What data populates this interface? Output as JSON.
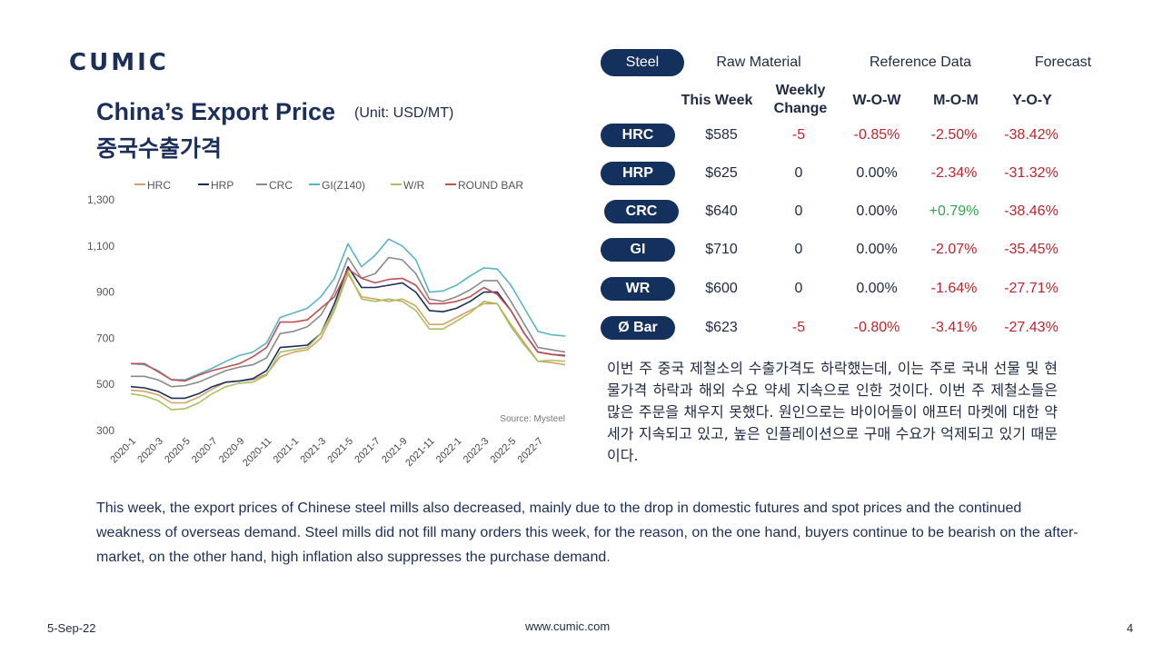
{
  "brand": {
    "logo_text": "CUMIC"
  },
  "heading": {
    "title_en": "China’s Export Price",
    "unit": "(Unit: USD/MT)",
    "title_ko": "중국수출가격"
  },
  "tabs": [
    {
      "label": "Steel",
      "active": true
    },
    {
      "label": "Raw Material",
      "active": false
    },
    {
      "label": "Reference Data",
      "active": false
    },
    {
      "label": "Forecast",
      "active": false
    }
  ],
  "table": {
    "headers": {
      "this_week": "This Week",
      "weekly_change_1": "Weekly",
      "weekly_change_2": "Change",
      "wow": "W-O-W",
      "mom": "M-O-M",
      "yoy": "Y-O-Y"
    },
    "rows": [
      {
        "product": "HRC",
        "this_week": "$585",
        "change": "-5",
        "wow": "-0.85%",
        "mom": "-2.50%",
        "yoy": "-38.42%"
      },
      {
        "product": "HRP",
        "this_week": "$625",
        "change": "0",
        "wow": "0.00%",
        "mom": "-2.34%",
        "yoy": "-31.32%"
      },
      {
        "product": "CRC",
        "this_week": "$640",
        "change": "0",
        "wow": "0.00%",
        "mom": "+0.79%",
        "yoy": "-38.46%"
      },
      {
        "product": "GI",
        "this_week": "$710",
        "change": "0",
        "wow": "0.00%",
        "mom": "-2.07%",
        "yoy": "-35.45%"
      },
      {
        "product": "WR",
        "this_week": "$600",
        "change": "0",
        "wow": "0.00%",
        "mom": "-1.64%",
        "yoy": "-27.71%"
      },
      {
        "product": "Ø Bar",
        "this_week": "$623",
        "change": "-5",
        "wow": "-0.80%",
        "mom": "-3.41%",
        "yoy": "-27.43%"
      }
    ]
  },
  "colors": {
    "negative": "#c0242b",
    "positive": "#2aa84a",
    "neutral": "#1f2a44",
    "pill": "#13315c"
  },
  "commentary": {
    "ko": "이번 주 중국 제철소의 수출가격도 하락했는데, 이는 주로 국내 선물 및 현물가격 하락과 해외 수요 약세 지속으로 인한 것이다. 이번 주 제철소들은 많은 주문을 채우지 못했다. 원인으로는 바이어들이 애프터 마켓에 대한 약세가 지속되고 있고, 높은 인플레이션으로 구매 수요가 억제되고 있기 때문이다.",
    "en": "This week, the export prices of Chinese steel mills also decreased, mainly due to the drop in domestic futures and spot prices and the continued weakness of overseas demand. Steel mills did not fill many orders this week, for the reason, on the one hand, buyers continue to be bearish on the after-market, on the other hand, high inflation also suppresses the purchase demand."
  },
  "footer": {
    "date": "5-Sep-22",
    "url": "www.cumic.com",
    "page": "4"
  },
  "chart_data": {
    "type": "line",
    "title": "",
    "source": "Source: Mysteel",
    "ylim": [
      300,
      1300
    ],
    "yticks": [
      "1,300",
      "1,100",
      "900",
      "700",
      "500",
      "300"
    ],
    "ytick_values": [
      1300,
      1100,
      900,
      700,
      500,
      300
    ],
    "x_ticks": [
      "2020-1",
      "2020-3",
      "2020-5",
      "2020-7",
      "2020-9",
      "2020-11",
      "2021-1",
      "2021-3",
      "2021-5",
      "2021-7",
      "2021-9",
      "2021-11",
      "2022-1",
      "2022-3",
      "2022-5",
      "2022-7"
    ],
    "grid": false,
    "legend": "top",
    "x_range": [
      "2020-01",
      "2022-09"
    ],
    "series": [
      {
        "name": "HRC",
        "color": "#d9a066",
        "points": [
          [
            "2020-01",
            475
          ],
          [
            "2020-02",
            470
          ],
          [
            "2020-03",
            455
          ],
          [
            "2020-04",
            420
          ],
          [
            "2020-05",
            420
          ],
          [
            "2020-06",
            445
          ],
          [
            "2020-07",
            480
          ],
          [
            "2020-08",
            510
          ],
          [
            "2020-09",
            515
          ],
          [
            "2020-10",
            520
          ],
          [
            "2020-11",
            545
          ],
          [
            "2020-12",
            620
          ],
          [
            "2021-01",
            640
          ],
          [
            "2021-02",
            650
          ],
          [
            "2021-03",
            700
          ],
          [
            "2021-04",
            820
          ],
          [
            "2021-05",
            980
          ],
          [
            "2021-06",
            880
          ],
          [
            "2021-07",
            870
          ],
          [
            "2021-08",
            860
          ],
          [
            "2021-09",
            870
          ],
          [
            "2021-10",
            840
          ],
          [
            "2021-11",
            760
          ],
          [
            "2021-12",
            760
          ],
          [
            "2022-01",
            790
          ],
          [
            "2022-02",
            820
          ],
          [
            "2022-03",
            850
          ],
          [
            "2022-04",
            850
          ],
          [
            "2022-05",
            760
          ],
          [
            "2022-06",
            680
          ],
          [
            "2022-07",
            600
          ],
          [
            "2022-08",
            595
          ],
          [
            "2022-09",
            585
          ]
        ]
      },
      {
        "name": "HRP",
        "color": "#1b2f5a",
        "points": [
          [
            "2020-01",
            490
          ],
          [
            "2020-02",
            485
          ],
          [
            "2020-03",
            470
          ],
          [
            "2020-04",
            440
          ],
          [
            "2020-05",
            440
          ],
          [
            "2020-06",
            460
          ],
          [
            "2020-07",
            490
          ],
          [
            "2020-08",
            510
          ],
          [
            "2020-09",
            515
          ],
          [
            "2020-10",
            525
          ],
          [
            "2020-11",
            560
          ],
          [
            "2020-12",
            660
          ],
          [
            "2021-01",
            665
          ],
          [
            "2021-02",
            670
          ],
          [
            "2021-03",
            720
          ],
          [
            "2021-04",
            850
          ],
          [
            "2021-05",
            1010
          ],
          [
            "2021-06",
            920
          ],
          [
            "2021-07",
            920
          ],
          [
            "2021-08",
            930
          ],
          [
            "2021-09",
            940
          ],
          [
            "2021-10",
            900
          ],
          [
            "2021-11",
            820
          ],
          [
            "2021-12",
            815
          ],
          [
            "2022-01",
            830
          ],
          [
            "2022-02",
            860
          ],
          [
            "2022-03",
            900
          ],
          [
            "2022-04",
            900
          ],
          [
            "2022-05",
            820
          ],
          [
            "2022-06",
            720
          ],
          [
            "2022-07",
            640
          ],
          [
            "2022-08",
            630
          ],
          [
            "2022-09",
            625
          ]
        ]
      },
      {
        "name": "CRC",
        "color": "#8a8a8a",
        "points": [
          [
            "2020-01",
            535
          ],
          [
            "2020-02",
            535
          ],
          [
            "2020-03",
            520
          ],
          [
            "2020-04",
            490
          ],
          [
            "2020-05",
            495
          ],
          [
            "2020-06",
            510
          ],
          [
            "2020-07",
            535
          ],
          [
            "2020-08",
            560
          ],
          [
            "2020-09",
            575
          ],
          [
            "2020-10",
            585
          ],
          [
            "2020-11",
            615
          ],
          [
            "2020-12",
            720
          ],
          [
            "2021-01",
            730
          ],
          [
            "2021-02",
            750
          ],
          [
            "2021-03",
            800
          ],
          [
            "2021-04",
            900
          ],
          [
            "2021-05",
            1050
          ],
          [
            "2021-06",
            960
          ],
          [
            "2021-07",
            980
          ],
          [
            "2021-08",
            1050
          ],
          [
            "2021-09",
            1040
          ],
          [
            "2021-10",
            980
          ],
          [
            "2021-11",
            870
          ],
          [
            "2021-12",
            860
          ],
          [
            "2022-01",
            880
          ],
          [
            "2022-02",
            910
          ],
          [
            "2022-03",
            950
          ],
          [
            "2022-04",
            950
          ],
          [
            "2022-05",
            860
          ],
          [
            "2022-06",
            760
          ],
          [
            "2022-07",
            660
          ],
          [
            "2022-08",
            650
          ],
          [
            "2022-09",
            640
          ]
        ]
      },
      {
        "name": "GI(Z140)",
        "color": "#5ab4c8",
        "points": [
          [
            "2020-01",
            590
          ],
          [
            "2020-02",
            585
          ],
          [
            "2020-03",
            560
          ],
          [
            "2020-04",
            520
          ],
          [
            "2020-05",
            520
          ],
          [
            "2020-06",
            545
          ],
          [
            "2020-07",
            570
          ],
          [
            "2020-08",
            600
          ],
          [
            "2020-09",
            625
          ],
          [
            "2020-10",
            640
          ],
          [
            "2020-11",
            680
          ],
          [
            "2020-12",
            790
          ],
          [
            "2021-01",
            810
          ],
          [
            "2021-02",
            830
          ],
          [
            "2021-03",
            880
          ],
          [
            "2021-04",
            960
          ],
          [
            "2021-05",
            1110
          ],
          [
            "2021-06",
            1010
          ],
          [
            "2021-07",
            1060
          ],
          [
            "2021-08",
            1130
          ],
          [
            "2021-09",
            1100
          ],
          [
            "2021-10",
            1040
          ],
          [
            "2021-11",
            900
          ],
          [
            "2021-12",
            905
          ],
          [
            "2022-01",
            930
          ],
          [
            "2022-02",
            970
          ],
          [
            "2022-03",
            1005
          ],
          [
            "2022-04",
            1000
          ],
          [
            "2022-05",
            930
          ],
          [
            "2022-06",
            830
          ],
          [
            "2022-07",
            730
          ],
          [
            "2022-08",
            715
          ],
          [
            "2022-09",
            710
          ]
        ]
      },
      {
        "name": "W/R",
        "color": "#a8c060",
        "points": [
          [
            "2020-01",
            460
          ],
          [
            "2020-02",
            450
          ],
          [
            "2020-03",
            430
          ],
          [
            "2020-04",
            390
          ],
          [
            "2020-05",
            395
          ],
          [
            "2020-06",
            420
          ],
          [
            "2020-07",
            460
          ],
          [
            "2020-08",
            490
          ],
          [
            "2020-09",
            505
          ],
          [
            "2020-10",
            510
          ],
          [
            "2020-11",
            540
          ],
          [
            "2020-12",
            640
          ],
          [
            "2021-01",
            650
          ],
          [
            "2021-02",
            660
          ],
          [
            "2021-03",
            720
          ],
          [
            "2021-04",
            830
          ],
          [
            "2021-05",
            990
          ],
          [
            "2021-06",
            870
          ],
          [
            "2021-07",
            860
          ],
          [
            "2021-08",
            870
          ],
          [
            "2021-09",
            860
          ],
          [
            "2021-10",
            820
          ],
          [
            "2021-11",
            740
          ],
          [
            "2021-12",
            740
          ],
          [
            "2022-01",
            775
          ],
          [
            "2022-02",
            810
          ],
          [
            "2022-03",
            860
          ],
          [
            "2022-04",
            850
          ],
          [
            "2022-05",
            750
          ],
          [
            "2022-06",
            670
          ],
          [
            "2022-07",
            600
          ],
          [
            "2022-08",
            605
          ],
          [
            "2022-09",
            600
          ]
        ]
      },
      {
        "name": "ROUND BAR",
        "color": "#c05050",
        "points": [
          [
            "2020-01",
            590
          ],
          [
            "2020-02",
            590
          ],
          [
            "2020-03",
            555
          ],
          [
            "2020-04",
            520
          ],
          [
            "2020-05",
            515
          ],
          [
            "2020-06",
            540
          ],
          [
            "2020-07",
            560
          ],
          [
            "2020-08",
            575
          ],
          [
            "2020-09",
            590
          ],
          [
            "2020-10",
            620
          ],
          [
            "2020-11",
            660
          ],
          [
            "2020-12",
            770
          ],
          [
            "2021-01",
            770
          ],
          [
            "2021-02",
            780
          ],
          [
            "2021-03",
            830
          ],
          [
            "2021-04",
            880
          ],
          [
            "2021-05,",
            1000
          ],
          [
            "2021-06",
            960
          ],
          [
            "2021-07",
            940
          ],
          [
            "2021-08",
            955
          ],
          [
            "2021-09",
            960
          ],
          [
            "2021-10",
            930
          ],
          [
            "2021-11",
            850
          ],
          [
            "2021-12",
            850
          ],
          [
            "2022-01",
            860
          ],
          [
            "2022-02",
            880
          ],
          [
            "2022-03",
            920
          ],
          [
            "2022-04",
            890
          ],
          [
            "2022-05",
            820
          ],
          [
            "2022-06",
            720
          ],
          [
            "2022-07",
            640
          ],
          [
            "2022-08",
            630
          ],
          [
            "2022-09",
            623
          ]
        ]
      }
    ]
  }
}
